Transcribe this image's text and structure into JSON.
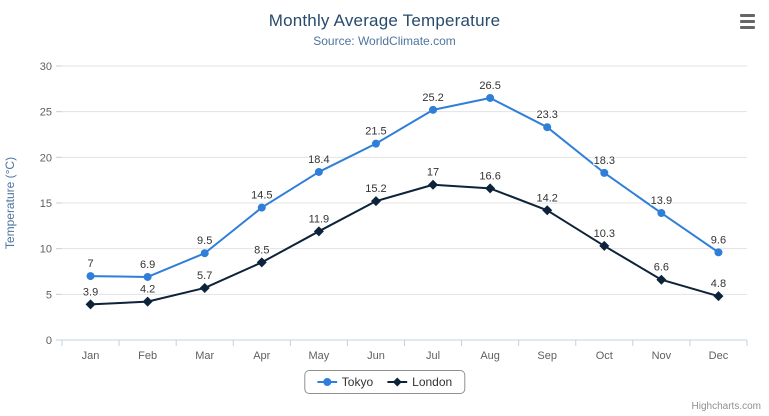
{
  "header": {
    "title": "Monthly Average Temperature",
    "subtitle": "Source: WorldClimate.com"
  },
  "chart_data": {
    "type": "line",
    "categories": [
      "Jan",
      "Feb",
      "Mar",
      "Apr",
      "May",
      "Jun",
      "Jul",
      "Aug",
      "Sep",
      "Oct",
      "Nov",
      "Dec"
    ],
    "series": [
      {
        "name": "Tokyo",
        "color": "#2f7ed8",
        "marker": "circle",
        "values": [
          7,
          6.9,
          9.5,
          14.5,
          18.4,
          21.5,
          25.2,
          26.5,
          23.3,
          18.3,
          13.9,
          9.6
        ]
      },
      {
        "name": "London",
        "color": "#0d233a",
        "marker": "diamond",
        "values": [
          3.9,
          4.2,
          5.7,
          8.5,
          11.9,
          15.2,
          17,
          16.6,
          14.2,
          10.3,
          6.6,
          4.8
        ]
      }
    ],
    "title": "Monthly Average Temperature",
    "subtitle": "Source: WorldClimate.com",
    "xlabel": "",
    "ylabel": "Temperature (°C)",
    "ylim": [
      0,
      30
    ],
    "ytick_step": 5,
    "yticks": [
      0,
      5,
      10,
      15,
      20,
      25,
      30
    ],
    "grid": true,
    "data_labels": true,
    "legend_position": "bottom"
  },
  "legend": {
    "items": [
      "Tokyo",
      "London"
    ]
  },
  "menu": {
    "icon": "hamburger-menu-icon"
  },
  "credits": {
    "label": "Highcharts.com"
  }
}
